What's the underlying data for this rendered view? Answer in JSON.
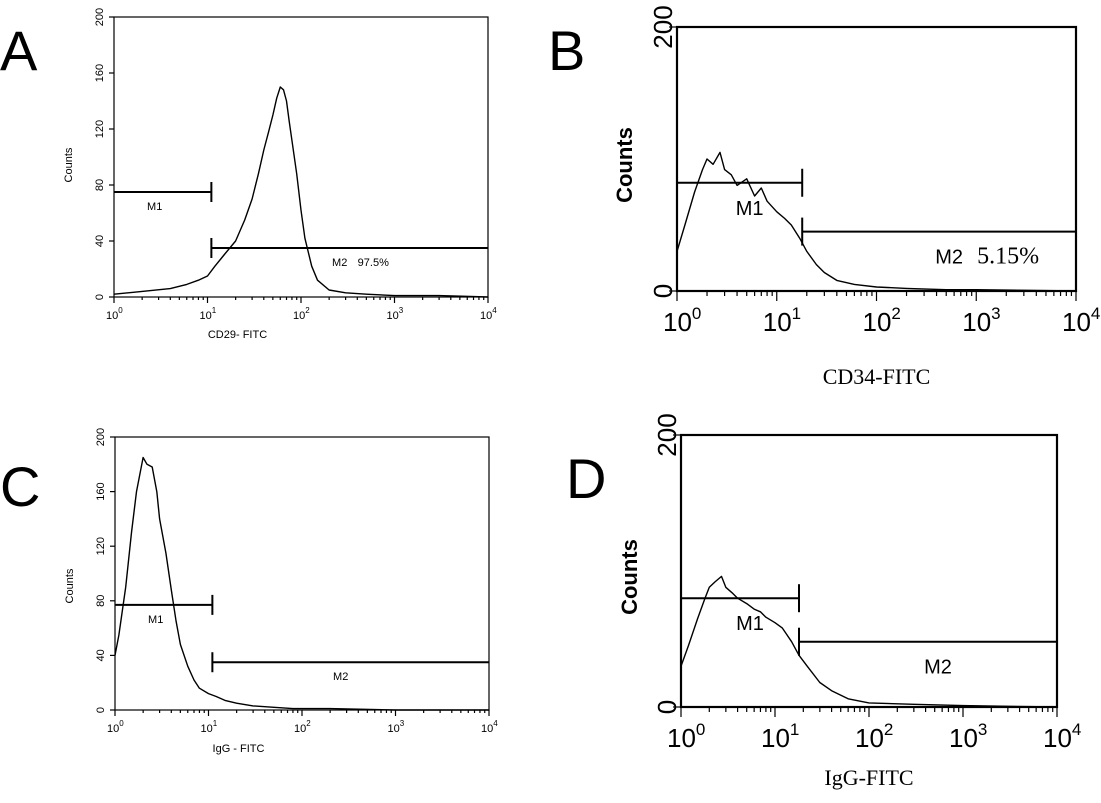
{
  "chart_data": [
    {
      "panel": "A",
      "type": "line",
      "xlabel": "CD29- FITC",
      "ylabel": "Counts",
      "x_scale": "log",
      "xlim": [
        1,
        10000
      ],
      "ylim": [
        0,
        200
      ],
      "x_ticks": [
        "10^0",
        "10^1",
        "10^2",
        "10^3",
        "10^4"
      ],
      "y_ticks": [
        "0",
        "40",
        "80",
        "120",
        "160",
        "200"
      ],
      "series": [
        {
          "x": [
            1,
            2,
            4,
            6,
            8,
            10,
            12,
            15,
            20,
            25,
            30,
            35,
            40,
            45,
            50,
            55,
            60,
            65,
            70,
            75,
            80,
            90,
            100,
            110,
            130,
            150,
            200,
            300,
            500,
            1000,
            3000,
            10000
          ],
          "y": [
            2,
            4,
            6,
            9,
            12,
            15,
            22,
            30,
            40,
            55,
            70,
            88,
            105,
            118,
            130,
            142,
            150,
            148,
            140,
            125,
            112,
            88,
            62,
            42,
            22,
            12,
            5,
            3,
            2,
            1,
            1,
            0
          ]
        }
      ],
      "gates": [
        {
          "label": "M1",
          "x_start": 1,
          "x_end": 11,
          "y": 75,
          "percent_text": ""
        },
        {
          "label": "M2",
          "x_start": 11,
          "x_end": 10000,
          "y": 35,
          "percent_text": "97.5%"
        }
      ]
    },
    {
      "panel": "B",
      "type": "line",
      "xlabel": "CD34-FITC",
      "ylabel": "Counts",
      "x_scale": "log",
      "xlim": [
        1,
        10000
      ],
      "ylim": [
        0,
        200
      ],
      "x_ticks": [
        "10^0",
        "10^1",
        "10^2",
        "10^3",
        "10^4"
      ],
      "y_ticks": [
        "0",
        "200"
      ],
      "series": [
        {
          "x": [
            1,
            1.2,
            1.5,
            1.8,
            2,
            2.3,
            2.7,
            3,
            3.5,
            4,
            5,
            6,
            7,
            8,
            10,
            12,
            14,
            17,
            20,
            25,
            30,
            40,
            60,
            100,
            200,
            500,
            1000,
            10000
          ],
          "y": [
            30,
            50,
            75,
            92,
            100,
            96,
            105,
            92,
            88,
            80,
            85,
            72,
            78,
            68,
            60,
            55,
            50,
            40,
            30,
            20,
            14,
            8,
            5,
            3,
            2,
            1,
            1,
            0
          ]
        }
      ],
      "gates": [
        {
          "label": "M1",
          "x_start": 1,
          "x_end": 18,
          "y": 82,
          "percent_text": ""
        },
        {
          "label": "M2",
          "x_start": 18,
          "x_end": 10000,
          "y": 45,
          "percent_text": "5.15%"
        }
      ]
    },
    {
      "panel": "C",
      "type": "line",
      "xlabel": "IgG - FITC",
      "ylabel": "Counts",
      "x_scale": "log",
      "xlim": [
        1,
        10000
      ],
      "ylim": [
        0,
        200
      ],
      "x_ticks": [
        "10^0",
        "10^1",
        "10^2",
        "10^3",
        "10^4"
      ],
      "y_ticks": [
        "0",
        "40",
        "80",
        "120",
        "160",
        "200"
      ],
      "series": [
        {
          "x": [
            1,
            1.1,
            1.3,
            1.5,
            1.7,
            2,
            2.2,
            2.5,
            2.8,
            3,
            3.5,
            4,
            4.5,
            5,
            6,
            7,
            8,
            10,
            12,
            15,
            20,
            30,
            50,
            80,
            200,
            1000,
            10000
          ],
          "y": [
            40,
            55,
            90,
            130,
            160,
            185,
            180,
            178,
            160,
            140,
            115,
            88,
            65,
            48,
            32,
            22,
            16,
            12,
            10,
            7,
            5,
            3,
            2,
            1,
            1,
            0,
            0
          ]
        }
      ],
      "gates": [
        {
          "label": "M1",
          "x_start": 1,
          "x_end": 11,
          "y": 77,
          "percent_text": ""
        },
        {
          "label": "M2",
          "x_start": 11,
          "x_end": 10000,
          "y": 35,
          "percent_text": ""
        }
      ]
    },
    {
      "panel": "D",
      "type": "line",
      "xlabel": "IgG-FITC",
      "ylabel": "Counts",
      "x_scale": "log",
      "xlim": [
        1,
        10000
      ],
      "ylim": [
        0,
        200
      ],
      "x_ticks": [
        "10^0",
        "10^1",
        "10^2",
        "10^3",
        "10^4"
      ],
      "y_ticks": [
        "0",
        "200"
      ],
      "series": [
        {
          "x": [
            1,
            1.2,
            1.5,
            1.8,
            2,
            2.3,
            2.7,
            3,
            3.5,
            4,
            5,
            6,
            7,
            8,
            10,
            12,
            15,
            18,
            22,
            30,
            40,
            60,
            100,
            300,
            1000,
            10000
          ],
          "y": [
            30,
            45,
            65,
            80,
            88,
            92,
            96,
            88,
            84,
            80,
            76,
            72,
            70,
            66,
            62,
            58,
            48,
            38,
            30,
            18,
            12,
            6,
            3,
            2,
            1,
            0
          ]
        }
      ],
      "gates": [
        {
          "label": "M1",
          "x_start": 1,
          "x_end": 18,
          "y": 80,
          "percent_text": ""
        },
        {
          "label": "M2",
          "x_start": 18,
          "x_end": 10000,
          "y": 48,
          "percent_text": ""
        }
      ]
    }
  ]
}
